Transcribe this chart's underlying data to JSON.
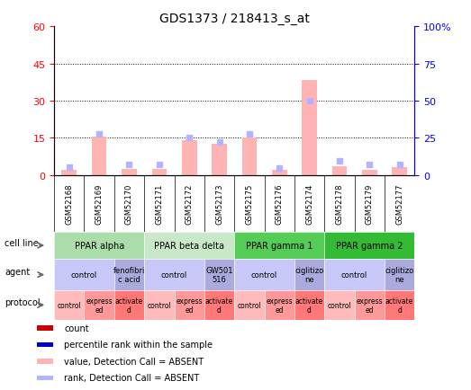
{
  "title": "GDS1373 / 218413_s_at",
  "samples": [
    "GSM52168",
    "GSM52169",
    "GSM52170",
    "GSM52171",
    "GSM52172",
    "GSM52173",
    "GSM52175",
    "GSM52176",
    "GSM52174",
    "GSM52178",
    "GSM52179",
    "GSM52177"
  ],
  "values": [
    2.0,
    15.5,
    2.5,
    2.5,
    14.0,
    12.5,
    15.0,
    2.0,
    38.5,
    3.5,
    2.0,
    3.0
  ],
  "ranks": [
    5.0,
    27.5,
    7.0,
    7.0,
    25.0,
    22.5,
    27.5,
    4.5,
    50.0,
    9.5,
    7.0,
    7.0
  ],
  "ylim_left": [
    0,
    60
  ],
  "ylim_right": [
    0,
    100
  ],
  "yticks_left": [
    0,
    15,
    30,
    45,
    60
  ],
  "yticks_right": [
    0,
    25,
    50,
    75,
    100
  ],
  "cell_lines": [
    {
      "label": "PPAR alpha",
      "start": 0,
      "end": 3,
      "color": "#aaddaa"
    },
    {
      "label": "PPAR beta delta",
      "start": 3,
      "end": 6,
      "color": "#c8e8c8"
    },
    {
      "label": "PPAR gamma 1",
      "start": 6,
      "end": 9,
      "color": "#55cc55"
    },
    {
      "label": "PPAR gamma 2",
      "start": 9,
      "end": 12,
      "color": "#33bb33"
    }
  ],
  "agents": [
    {
      "label": "control",
      "start": 0,
      "end": 2,
      "color": "#c8c8f8"
    },
    {
      "label": "fenofibri\nc acid",
      "start": 2,
      "end": 3,
      "color": "#aaaadd"
    },
    {
      "label": "control",
      "start": 3,
      "end": 5,
      "color": "#c8c8f8"
    },
    {
      "label": "GW501\n516",
      "start": 5,
      "end": 6,
      "color": "#aaaadd"
    },
    {
      "label": "control",
      "start": 6,
      "end": 8,
      "color": "#c8c8f8"
    },
    {
      "label": "ciglitizo\nne",
      "start": 8,
      "end": 9,
      "color": "#aaaadd"
    },
    {
      "label": "control",
      "start": 9,
      "end": 11,
      "color": "#c8c8f8"
    },
    {
      "label": "ciglitizo\nne",
      "start": 11,
      "end": 12,
      "color": "#aaaadd"
    }
  ],
  "protocols": [
    {
      "label": "control",
      "start": 0,
      "end": 1,
      "color": "#ffbbbb"
    },
    {
      "label": "express\ned",
      "start": 1,
      "end": 2,
      "color": "#ff9999"
    },
    {
      "label": "activate\nd",
      "start": 2,
      "end": 3,
      "color": "#ff7777"
    },
    {
      "label": "control",
      "start": 3,
      "end": 4,
      "color": "#ffbbbb"
    },
    {
      "label": "express\ned",
      "start": 4,
      "end": 5,
      "color": "#ff9999"
    },
    {
      "label": "activate\nd",
      "start": 5,
      "end": 6,
      "color": "#ff7777"
    },
    {
      "label": "control",
      "start": 6,
      "end": 7,
      "color": "#ffbbbb"
    },
    {
      "label": "express\ned",
      "start": 7,
      "end": 8,
      "color": "#ff9999"
    },
    {
      "label": "activate\nd",
      "start": 8,
      "end": 9,
      "color": "#ff7777"
    },
    {
      "label": "control",
      "start": 9,
      "end": 10,
      "color": "#ffbbbb"
    },
    {
      "label": "express\ned",
      "start": 10,
      "end": 11,
      "color": "#ff9999"
    },
    {
      "label": "activate\nd",
      "start": 11,
      "end": 12,
      "color": "#ff7777"
    }
  ],
  "bar_color": "#ffb3b3",
  "rank_color": "#b3b3ff",
  "sample_bg_color": "#cccccc",
  "legend_items": [
    {
      "label": "count",
      "color": "#cc0000"
    },
    {
      "label": "percentile rank within the sample",
      "color": "#0000cc"
    },
    {
      "label": "value, Detection Call = ABSENT",
      "color": "#ffb3b3"
    },
    {
      "label": "rank, Detection Call = ABSENT",
      "color": "#b3b3ff"
    }
  ]
}
